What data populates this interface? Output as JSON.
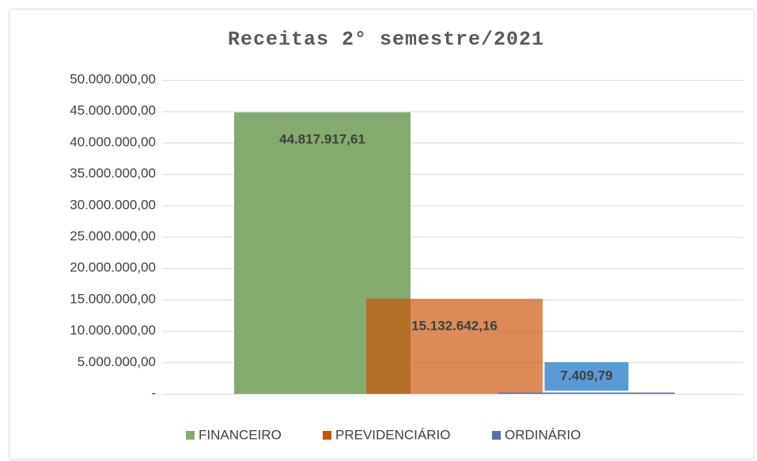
{
  "chart_data": {
    "type": "bar",
    "title": "Receitas 2° semestre/2021",
    "categories": [
      null
    ],
    "series": [
      {
        "name": "FINANCEIRO",
        "color": "#85aa6f",
        "label_fill": "#85aa6f",
        "values": [
          44817917.61
        ],
        "value_labels": [
          "44.817.917,61"
        ]
      },
      {
        "name": "PREVIDENCIÁRIO",
        "color": "#cb5204",
        "label_fill": "#dc8b57",
        "values": [
          15132642.16
        ],
        "value_labels": [
          "15.132.642,16"
        ]
      },
      {
        "name": "ORDINÁRIO",
        "color": "#5872a5",
        "label_fill": "#5b9bd5",
        "values": [
          7409.79
        ],
        "value_labels": [
          "7.409,79"
        ]
      }
    ],
    "ylim": [
      0,
      50000000
    ],
    "yticks": [
      {
        "value": 0,
        "label": "-"
      },
      {
        "value": 5000000,
        "label": "5.000.000,00"
      },
      {
        "value": 10000000,
        "label": "10.000.000,00"
      },
      {
        "value": 15000000,
        "label": "15.000.000,00"
      },
      {
        "value": 20000000,
        "label": "20.000.000,00"
      },
      {
        "value": 25000000,
        "label": "25.000.000,00"
      },
      {
        "value": 30000000,
        "label": "30.000.000,00"
      },
      {
        "value": 35000000,
        "label": "35.000.000,00"
      },
      {
        "value": 40000000,
        "label": "40.000.000,00"
      },
      {
        "value": 45000000,
        "label": "45.000.000,00"
      },
      {
        "value": 50000000,
        "label": "50.000.000,00"
      }
    ],
    "grid": true,
    "legend": "bottom"
  }
}
